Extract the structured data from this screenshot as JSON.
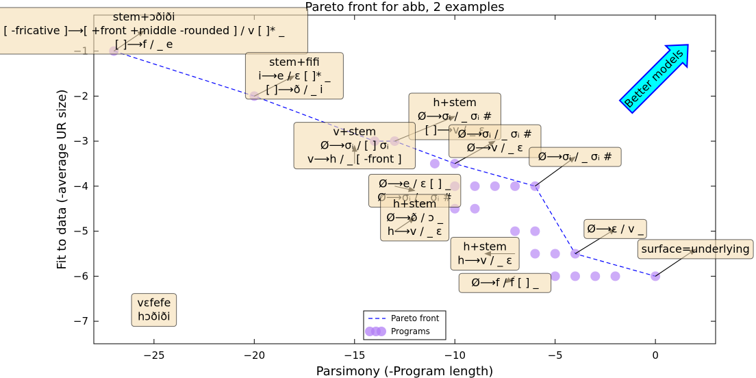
{
  "chart_data": {
    "type": "scatter",
    "title": "Pareto front for abb, 2 examples",
    "xlabel": "Parsimony (-Program length)",
    "ylabel": "Fit to data (-average UR size)",
    "xlim": [
      -28,
      3
    ],
    "ylim": [
      -7.5,
      -0.2
    ],
    "x_ticks": [
      -25,
      -20,
      -15,
      -10,
      -5,
      0
    ],
    "y_ticks": [
      -1,
      -2,
      -3,
      -4,
      -5,
      -6,
      -7
    ],
    "x_tick_labels": [
      "−25",
      "−20",
      "−15",
      "−10",
      "−5",
      "0"
    ],
    "y_tick_labels": [
      "−1",
      "−2",
      "−3",
      "−4",
      "−5",
      "−6",
      "−7"
    ],
    "grid": false,
    "legend_position": "bottom-center",
    "series": [
      {
        "name": "Pareto front",
        "kind": "line",
        "style": "dashed",
        "color": "#0000ff",
        "x": [
          -27,
          -20,
          -14,
          -13,
          -10,
          -6,
          -4,
          0
        ],
        "y": [
          -1,
          -2,
          -3,
          -3,
          -3.5,
          -4,
          -5.5,
          -6
        ]
      },
      {
        "name": "Programs",
        "kind": "scatter",
        "color": "#b27ff5",
        "points": [
          [
            -27,
            -1
          ],
          [
            -20,
            -2
          ],
          [
            -13,
            -3
          ],
          [
            -14,
            -3
          ],
          [
            -11,
            -3.5
          ],
          [
            -10,
            -3.5
          ],
          [
            -10,
            -4
          ],
          [
            -9,
            -4
          ],
          [
            -8,
            -4
          ],
          [
            -7,
            -4
          ],
          [
            -6,
            -4
          ],
          [
            -10,
            -4.5
          ],
          [
            -9,
            -4.5
          ],
          [
            -7,
            -5
          ],
          [
            -6,
            -5
          ],
          [
            -6,
            -5.5
          ],
          [
            -5,
            -5.5
          ],
          [
            -4,
            -5.5
          ],
          [
            -5,
            -6
          ],
          [
            -4,
            -6
          ],
          [
            -3,
            -6
          ],
          [
            -2,
            -6
          ],
          [
            0,
            -6
          ]
        ]
      }
    ],
    "annotations": [
      {
        "id": "stem-edhidhi",
        "lines": [
          "stem+ɔðiði",
          "[ -fricative ]⟶[ +front +middle -rounded ] / v [  ]* _",
          "[  ]⟶f /  _ e"
        ],
        "point": [
          -27,
          -1
        ],
        "text_at": [
          -25.5,
          -0.55
        ]
      },
      {
        "id": "stem-fifi",
        "lines": [
          "stem+fifi",
          "i⟶e / ɛ [  ]* _",
          "[  ]⟶ð /  _ i"
        ],
        "point": [
          -20,
          -2
        ],
        "text_at": [
          -18,
          -1.55
        ]
      },
      {
        "id": "h-stem-1",
        "lines": [
          "h+stem",
          "Ø⟶σᵢ /  _ σᵢ #",
          "[  ]⟶v /  _ ɛ"
        ],
        "point": [
          -13,
          -3
        ],
        "text_at": [
          -10,
          -2.45
        ]
      },
      {
        "id": "ann-sigma-v-eps",
        "lines": [
          "Ø⟶σᵢ /  _ σᵢ #",
          "Ø⟶v /  _ ɛ"
        ],
        "point": [
          -10,
          -3.5
        ],
        "text_at": [
          -8,
          -3
        ]
      },
      {
        "id": "ann-sigma-1",
        "lines": [
          "Ø⟶σᵢ /  _ σᵢ #"
        ],
        "point": [
          -6,
          -4
        ],
        "text_at": [
          -4,
          -3.35
        ]
      },
      {
        "id": "v-stem",
        "lines": [
          "v+stem",
          "Ø⟶σᵢ / [  ] σᵢ",
          "v⟶h /  _ [ -front ]"
        ],
        "point": [
          -15,
          -3.5
        ],
        "text_at": [
          -15,
          -3.1
        ]
      },
      {
        "id": "ann-e-eps-sigma",
        "lines": [
          "Ø⟶e / ɛ [  ] _",
          "Ø⟶σᵢ /  _ σᵢ #"
        ],
        "point": [
          -13,
          -4
        ],
        "text_at": [
          -12,
          -4.1
        ]
      },
      {
        "id": "h-stem-2",
        "lines": [
          "h+stem",
          "Ø⟶ð / ɔ _",
          "h⟶v /  _ ɛ"
        ],
        "point": [
          -13,
          -5
        ],
        "text_at": [
          -12,
          -4.7
        ]
      },
      {
        "id": "ann-eps-v",
        "lines": [
          "Ø⟶ɛ / v _"
        ],
        "point": [
          -4,
          -5.5
        ],
        "text_at": [
          -2,
          -4.95
        ]
      },
      {
        "id": "surface-underlying",
        "lines": [
          "surface=underlying"
        ],
        "point": [
          0,
          -6
        ],
        "text_at": [
          2,
          -5.4
        ]
      },
      {
        "id": "h-stem-3",
        "lines": [
          "h+stem",
          "h⟶v /  _ ɛ"
        ],
        "point": [
          -7,
          -5.5
        ],
        "text_at": [
          -8.5,
          -5.5
        ]
      },
      {
        "id": "ann-f-f",
        "lines": [
          "Ø⟶f / f [  ] _"
        ],
        "point": [
          -7,
          -6
        ],
        "text_at": [
          -7.5,
          -6.15
        ]
      },
      {
        "id": "examples",
        "lines": [
          "vɛfefe",
          "hɔðiði"
        ],
        "point": null,
        "text_at": [
          -25,
          -6.75
        ]
      }
    ],
    "callout": {
      "text": "Better models",
      "color": "#00ffff"
    }
  }
}
